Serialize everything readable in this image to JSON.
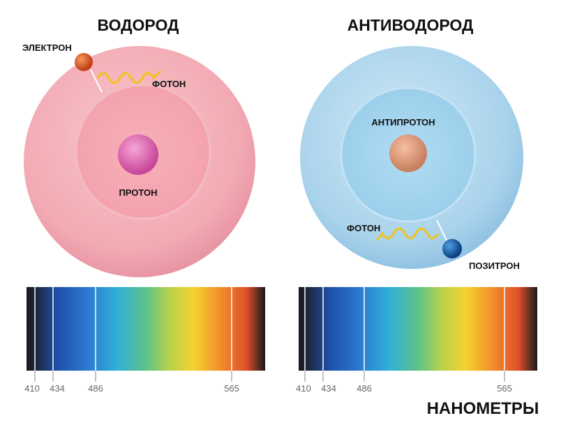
{
  "panels": [
    {
      "title": "ВОДОРОД",
      "electron": "ЭЛЕКТРОН",
      "photon": "ФОТОН",
      "nucleus": "ПРОТОН",
      "spectrum_ticks": [
        410,
        434,
        486,
        565
      ]
    },
    {
      "title": "АНТИВОДОРОД",
      "electron": "ПОЗИТРОН",
      "photon": "ФОТОН",
      "nucleus": "АНТИПРОТОН",
      "spectrum_ticks": [
        410,
        434,
        486,
        565
      ]
    }
  ],
  "axis_label": "НАНОМЕТРЫ"
}
